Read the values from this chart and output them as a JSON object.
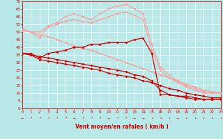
{
  "xlabel": "Vent moyen/en rafales ( km/h )",
  "bg": "#b8e8e8",
  "grid_color": "#ffffff",
  "tc": "#cc0000",
  "xlim": [
    0,
    23
  ],
  "ylim": [
    0,
    70
  ],
  "yticks": [
    0,
    5,
    10,
    15,
    20,
    25,
    30,
    35,
    40,
    45,
    50,
    55,
    60,
    65,
    70
  ],
  "xticks": [
    0,
    1,
    2,
    3,
    4,
    5,
    6,
    7,
    8,
    9,
    10,
    11,
    12,
    13,
    14,
    15,
    16,
    17,
    18,
    19,
    20,
    21,
    22,
    23
  ],
  "series": [
    {
      "comment": "light pink top curve with v markers - peaks around x=12 at 68",
      "x": [
        0,
        1,
        2,
        3,
        4,
        5,
        6,
        7,
        8,
        9,
        10,
        11,
        12,
        13,
        14,
        15,
        16,
        17,
        18,
        19,
        20,
        21,
        22,
        23
      ],
      "y": [
        52,
        50,
        46,
        54,
        56,
        60,
        62,
        60,
        58,
        62,
        65,
        67,
        68,
        65,
        62,
        42,
        27,
        22,
        18,
        15,
        13,
        11,
        10,
        10
      ],
      "color": "#ff9999",
      "marker": "v",
      "ms": 2.5,
      "lw": 0.8
    },
    {
      "comment": "light pink second curve - slightly lower, diamond markers",
      "x": [
        0,
        1,
        2,
        3,
        4,
        5,
        6,
        7,
        8,
        9,
        10,
        11,
        12,
        13,
        14,
        15,
        16,
        17,
        18,
        19,
        20,
        21,
        22,
        23
      ],
      "y": [
        51,
        50,
        50,
        53,
        55,
        57,
        58,
        57,
        56,
        58,
        60,
        62,
        63,
        61,
        58,
        38,
        25,
        20,
        17,
        14,
        12,
        10,
        10,
        10
      ],
      "color": "#ff9999",
      "marker": "D",
      "ms": 1.5,
      "lw": 0.8
    },
    {
      "comment": "light pink diagonal line from ~52 at x=0 down to ~10 at x=23",
      "x": [
        0,
        1,
        2,
        3,
        4,
        5,
        6,
        7,
        8,
        9,
        10,
        11,
        12,
        13,
        14,
        15,
        16,
        17,
        18,
        19,
        20,
        21,
        22,
        23
      ],
      "y": [
        52,
        50,
        48,
        47,
        45,
        43,
        41,
        39,
        38,
        36,
        34,
        32,
        30,
        28,
        26,
        24,
        22,
        20,
        18,
        16,
        14,
        12,
        11,
        10
      ],
      "color": "#ff9999",
      "marker": "D",
      "ms": 1.5,
      "lw": 0.8
    },
    {
      "comment": "dark red peaking curve - peaks ~45 at x=13-14, then drops sharply at x=15",
      "x": [
        0,
        1,
        2,
        3,
        4,
        5,
        6,
        7,
        8,
        9,
        10,
        11,
        12,
        13,
        14,
        15,
        16,
        17,
        18,
        19,
        20,
        21,
        22,
        23
      ],
      "y": [
        36,
        36,
        33,
        36,
        37,
        38,
        40,
        40,
        42,
        42,
        43,
        43,
        43,
        45,
        46,
        36,
        9,
        9,
        8,
        8,
        7,
        6,
        6,
        6
      ],
      "color": "#cc0000",
      "marker": "D",
      "ms": 2.0,
      "lw": 0.9
    },
    {
      "comment": "dark red diagonal down from 36 to ~7",
      "x": [
        0,
        1,
        2,
        3,
        4,
        5,
        6,
        7,
        8,
        9,
        10,
        11,
        12,
        13,
        14,
        15,
        16,
        17,
        18,
        19,
        20,
        21,
        22,
        23
      ],
      "y": [
        36,
        35,
        32,
        31,
        30,
        29,
        28,
        27,
        26,
        25,
        23,
        22,
        21,
        20,
        18,
        17,
        15,
        13,
        12,
        10,
        9,
        8,
        7,
        7
      ],
      "color": "#cc0000",
      "marker": "D",
      "ms": 2.0,
      "lw": 0.9
    },
    {
      "comment": "dark red third diagonal - from ~36 to ~6",
      "x": [
        0,
        1,
        2,
        3,
        4,
        5,
        6,
        7,
        8,
        9,
        10,
        11,
        12,
        13,
        14,
        15,
        16,
        17,
        18,
        19,
        20,
        21,
        22,
        23
      ],
      "y": [
        36,
        35,
        34,
        33,
        32,
        31,
        30,
        29,
        28,
        27,
        26,
        25,
        24,
        22,
        21,
        18,
        12,
        9,
        8,
        7,
        6,
        6,
        6,
        6
      ],
      "color": "#cc0000",
      "marker": "D",
      "ms": 2.0,
      "lw": 0.9
    }
  ],
  "wind_arrows_x": [
    0,
    1,
    2,
    3,
    4,
    5,
    6,
    7,
    8,
    9,
    10,
    11,
    12,
    13,
    14,
    15,
    16,
    17,
    18,
    19,
    20,
    21,
    22,
    23
  ],
  "wind_arrows": [
    "→",
    "↗",
    "↗",
    "↗",
    "↗",
    "↗",
    "→",
    "↗",
    "↗",
    "↗",
    "→",
    "↗",
    "↗",
    "→",
    "→",
    "↘",
    "↘",
    "↘",
    "→",
    "↓",
    "↓",
    "↙",
    "↓",
    "↓"
  ]
}
